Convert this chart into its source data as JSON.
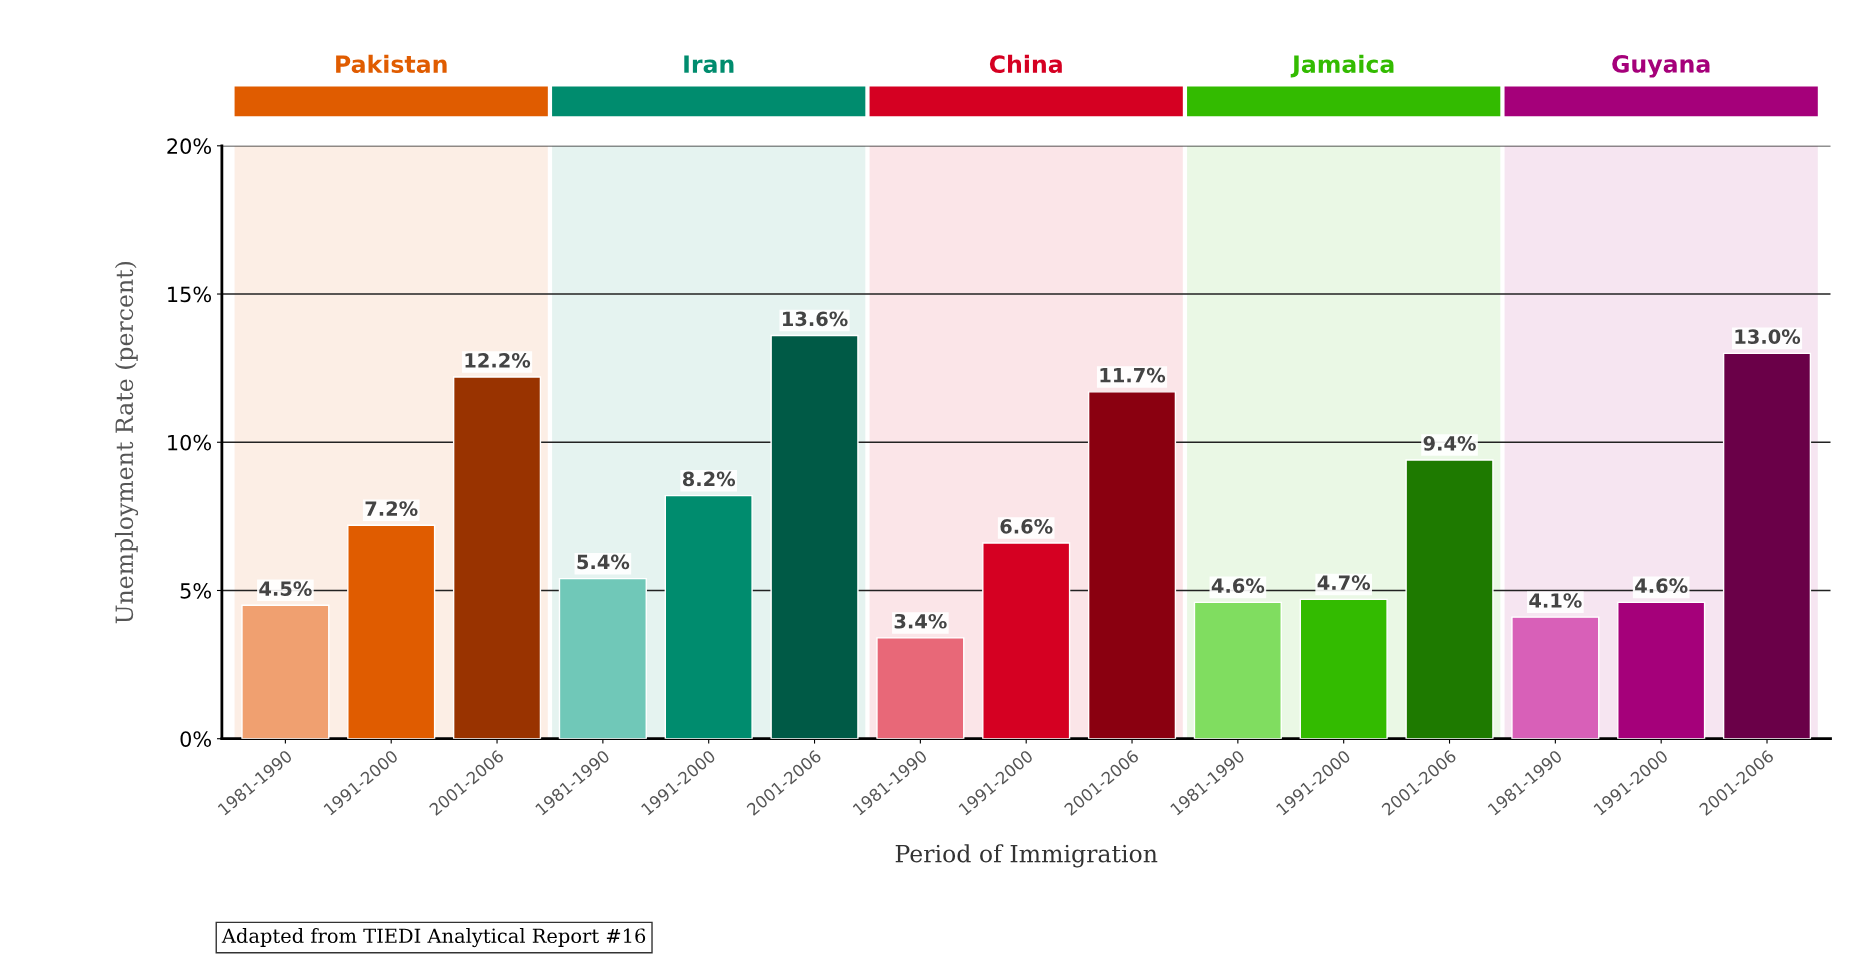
{
  "chart_data": {
    "type": "bar",
    "xlabel": "Period of Immigration",
    "ylabel": "Unemployment Rate (percent)",
    "categories": [
      "1981-1990",
      "1991-2000",
      "2001-2006",
      "1981-1990",
      "1991-2000",
      "2001-2006",
      "1981-1990",
      "1991-2000",
      "2001-2006",
      "1981-1990",
      "1991-2000",
      "2001-2006",
      "1981-1990",
      "1991-2000",
      "2001-2006"
    ],
    "series": [
      {
        "name": "Pakistan",
        "color": "#e05c00",
        "colors": [
          "#f0a070",
          "#e05c00",
          "#993300",
          null,
          null,
          null,
          null,
          null,
          null,
          null,
          null,
          null,
          null,
          null,
          null
        ],
        "values": [
          4.5,
          7.2,
          12.2,
          null,
          null,
          null,
          null,
          null,
          null,
          null,
          null,
          null,
          null,
          null,
          null
        ],
        "value_labels": [
          "4.5%",
          "7.2%",
          "12.2%",
          null,
          null,
          null,
          null,
          null,
          null,
          null,
          null,
          null,
          null,
          null,
          null
        ]
      },
      {
        "name": "Iran",
        "color": "#008c6e",
        "colors": [
          null,
          null,
          null,
          "#70c8b8",
          "#008c6e",
          "#005a46",
          null,
          null,
          null,
          null,
          null,
          null,
          null,
          null,
          null
        ],
        "values": [
          null,
          null,
          null,
          5.4,
          8.2,
          13.6,
          null,
          null,
          null,
          null,
          null,
          null,
          null,
          null,
          null
        ],
        "value_labels": [
          null,
          null,
          null,
          "5.4%",
          "8.2%",
          "13.6%",
          null,
          null,
          null,
          null,
          null,
          null,
          null,
          null,
          null
        ]
      },
      {
        "name": "China",
        "color": "#d50022",
        "colors": [
          null,
          null,
          null,
          null,
          null,
          null,
          "#e86878",
          "#d50022",
          "#8a0010",
          null,
          null,
          null,
          null,
          null,
          null
        ],
        "values": [
          null,
          null,
          null,
          null,
          null,
          null,
          3.4,
          6.6,
          11.7,
          null,
          null,
          null,
          null,
          null,
          null
        ],
        "value_labels": [
          null,
          null,
          null,
          null,
          null,
          null,
          "3.4%",
          "6.6%",
          "11.7%",
          null,
          null,
          null,
          null,
          null,
          null
        ]
      },
      {
        "name": "Jamaica",
        "color": "#33bb00",
        "colors": [
          null,
          null,
          null,
          null,
          null,
          null,
          null,
          null,
          null,
          "#80dd60",
          "#33bb00",
          "#1e7a00",
          null,
          null,
          null
        ],
        "values": [
          null,
          null,
          null,
          null,
          null,
          null,
          null,
          null,
          null,
          4.6,
          4.7,
          9.4,
          null,
          null,
          null
        ],
        "value_labels": [
          null,
          null,
          null,
          null,
          null,
          null,
          null,
          null,
          null,
          "4.6%",
          "4.7%",
          "9.4%",
          null,
          null,
          null
        ]
      },
      {
        "name": "Guyana",
        "color": "#a5007a",
        "colors": [
          null,
          null,
          null,
          null,
          null,
          null,
          null,
          null,
          null,
          null,
          null,
          null,
          "#d860b8",
          "#a5007a",
          "#6a0048"
        ],
        "values": [
          null,
          null,
          null,
          null,
          null,
          null,
          null,
          null,
          null,
          null,
          null,
          null,
          4.1,
          4.6,
          13.0
        ],
        "value_labels": [
          null,
          null,
          null,
          null,
          null,
          null,
          null,
          null,
          null,
          null,
          null,
          null,
          "4.1%",
          "4.6%",
          "13.0%"
        ]
      }
    ],
    "ylim": [
      0,
      20
    ],
    "yticks": [
      {
        "value": 0,
        "label": "0%"
      },
      {
        "value": 5,
        "label": "5%"
      },
      {
        "value": 10,
        "label": "10%"
      },
      {
        "value": 15,
        "label": "15%"
      },
      {
        "value": 20,
        "label": "20%"
      }
    ],
    "grid": "y",
    "annotations": [
      "Adapted from TIEDI Analytical Report #16"
    ]
  }
}
